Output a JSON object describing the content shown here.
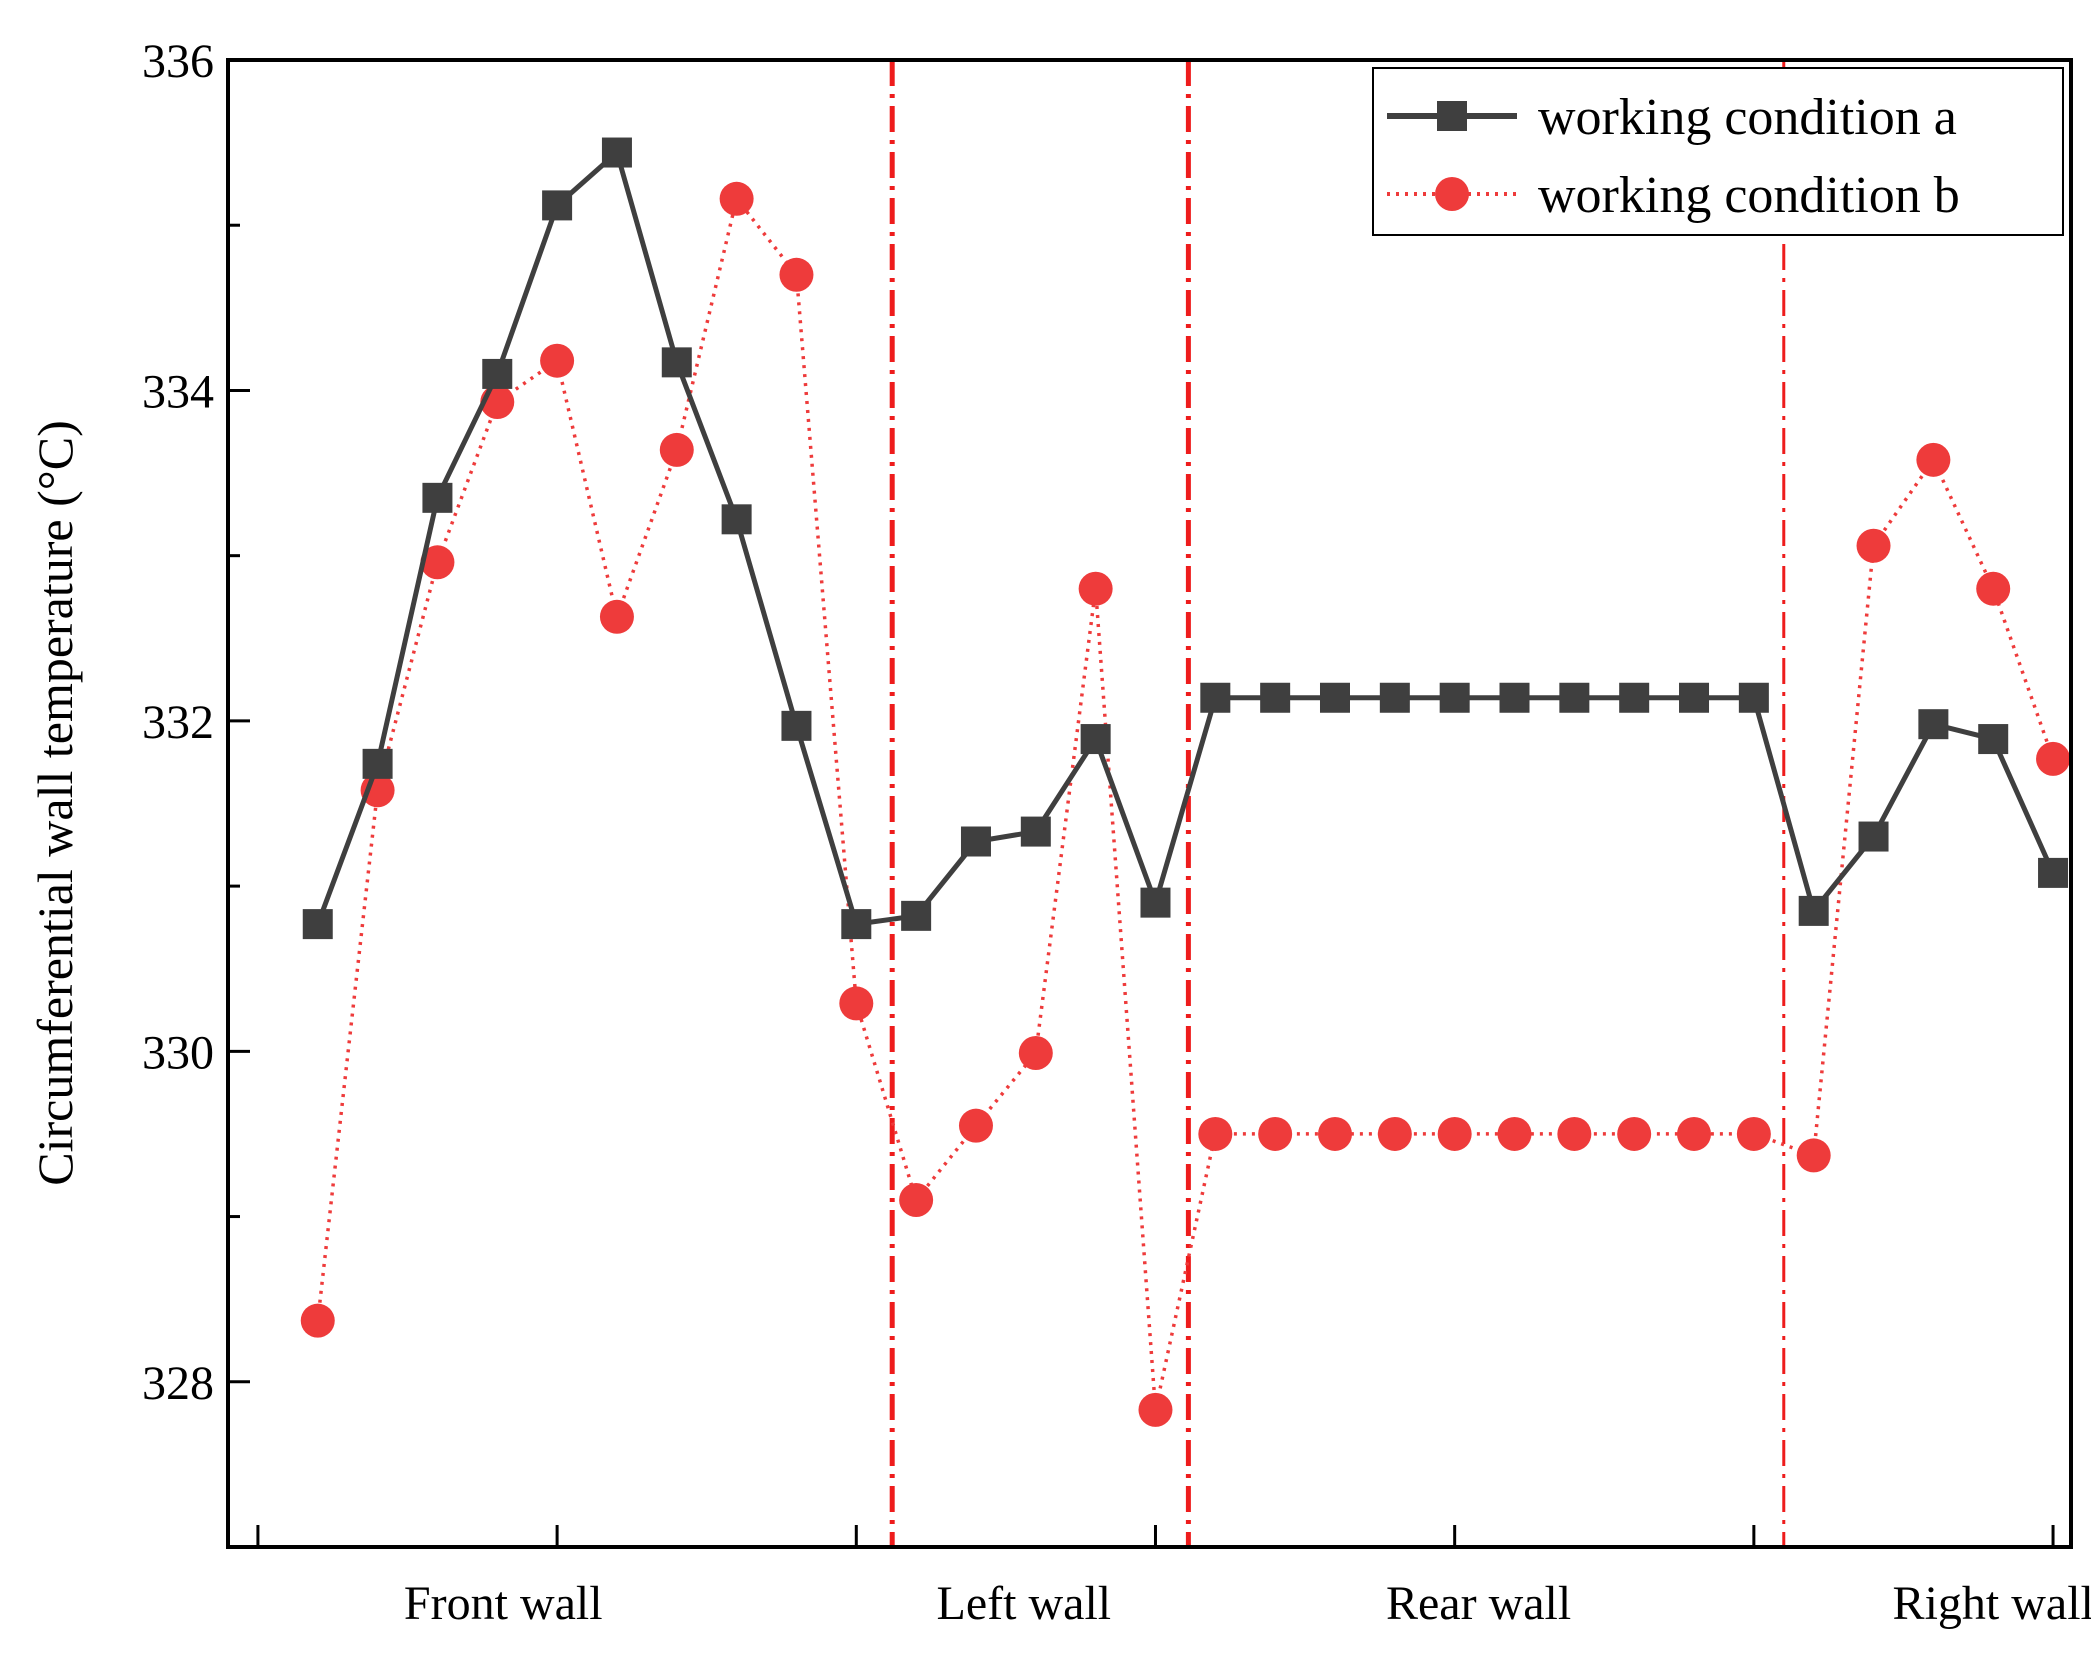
{
  "chart_data": {
    "type": "line",
    "title": "",
    "xlabel": "",
    "ylabel": "Circumferential wall temperature (°C)",
    "ylim": [
      327,
      336
    ],
    "yticks": [
      328,
      330,
      332,
      334,
      336
    ],
    "grid": false,
    "legend_position": "top-right",
    "x": [
      1,
      2,
      3,
      4,
      5,
      6,
      7,
      8,
      9,
      10,
      11,
      12,
      13,
      14,
      15,
      16,
      17,
      18,
      19,
      20,
      21,
      22,
      23,
      24,
      25,
      26,
      27,
      28,
      29,
      30
    ],
    "xlim": [
      -0.5,
      30.3
    ],
    "x_minor_ticks": [
      0,
      5,
      10,
      15,
      20,
      25,
      30
    ],
    "wall_separators": [
      10.6,
      15.55,
      25.5
    ],
    "regions": [
      {
        "label": "Front wall",
        "center": 4.1
      },
      {
        "label": "Left wall",
        "center": 12.8
      },
      {
        "label": "Rear wall",
        "center": 20.4
      },
      {
        "label": "Right wall",
        "center": 29.0
      }
    ],
    "series": [
      {
        "name": "working condition a",
        "color": "#3f3f3f",
        "line": "solid",
        "marker": "square",
        "values": [
          330.77,
          331.74,
          333.35,
          334.1,
          335.12,
          335.44,
          334.17,
          333.22,
          331.97,
          330.77,
          330.82,
          331.27,
          331.33,
          331.89,
          330.9,
          332.14,
          332.14,
          332.14,
          332.14,
          332.14,
          332.14,
          332.14,
          332.14,
          332.14,
          332.14,
          330.85,
          331.3,
          331.98,
          331.89,
          331.08
        ]
      },
      {
        "name": "working condition b",
        "color": "#ee3b3b",
        "line": "dotted",
        "marker": "circle",
        "values": [
          328.37,
          331.58,
          332.96,
          333.93,
          334.18,
          332.63,
          333.64,
          335.16,
          334.7,
          330.29,
          329.1,
          329.55,
          329.99,
          332.8,
          327.83,
          329.5,
          329.5,
          329.5,
          329.5,
          329.5,
          329.5,
          329.5,
          329.5,
          329.5,
          329.5,
          329.37,
          333.06,
          333.58,
          332.8,
          331.77
        ]
      }
    ]
  }
}
